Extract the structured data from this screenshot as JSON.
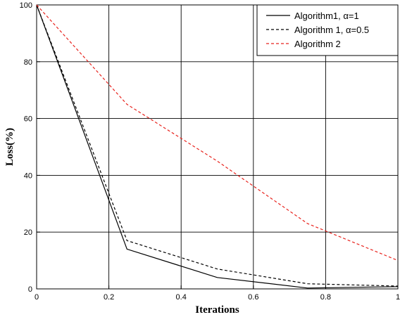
{
  "chart_data": {
    "type": "line",
    "title": "",
    "xlabel": "Iterations",
    "ylabel": "Loss(%)",
    "xlim": [
      0,
      1
    ],
    "ylim": [
      0,
      100
    ],
    "grid": true,
    "legend_position": "top-right",
    "xticks": [
      0,
      0.2,
      0.4,
      0.6,
      0.8,
      1
    ],
    "xtick_labels": [
      "0",
      "0.2",
      "0.4",
      "0.6",
      "0.8",
      "1"
    ],
    "yticks": [
      0,
      20,
      40,
      60,
      80,
      100
    ],
    "ytick_labels": [
      "0",
      "20",
      "40",
      "60",
      "80",
      "100"
    ],
    "series": [
      {
        "name": "Algorithm1,  α=1",
        "color": "#000000",
        "dash": "solid",
        "x": [
          0,
          0.25,
          0.5,
          0.75,
          1
        ],
        "y": [
          100,
          14,
          4,
          0.3,
          0.8
        ]
      },
      {
        "name": "Algorithm 1,  α=0.5",
        "color": "#000000",
        "dash": "dashed",
        "x": [
          0,
          0.25,
          0.5,
          0.75,
          1
        ],
        "y": [
          100,
          17,
          7,
          1.8,
          1
        ]
      },
      {
        "name": "Algorithm 2",
        "color": "#e8231d",
        "dash": "dashed",
        "x": [
          0,
          0.25,
          0.5,
          0.75,
          1
        ],
        "y": [
          100,
          65,
          45,
          23,
          10
        ]
      }
    ]
  }
}
